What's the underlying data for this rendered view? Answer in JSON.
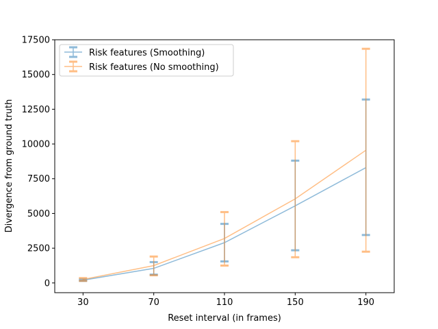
{
  "chart_data": {
    "type": "line",
    "xlabel": "Reset interval (in frames)",
    "ylabel": "Divergence from ground truth",
    "x": [
      30,
      70,
      110,
      150,
      190
    ],
    "xticks": [
      "30",
      "70",
      "110",
      "150",
      "190"
    ],
    "yticks": [
      "0",
      "2500",
      "5000",
      "7500",
      "10000",
      "12500",
      "15000",
      "17500"
    ],
    "ylim": [
      -700,
      17500
    ],
    "xlim": [
      14,
      206
    ],
    "grid": false,
    "legend_position": "upper-left",
    "series": [
      {
        "name": "Risk features (Smoothing)",
        "color": "#1f77b4",
        "values": [
          200,
          1050,
          2900,
          5550,
          8300
        ],
        "err_low": [
          150,
          600,
          1550,
          2350,
          3450
        ],
        "err_high": [
          250,
          1500,
          4250,
          8800,
          13200
        ]
      },
      {
        "name": "Risk features (No smoothing)",
        "color": "#ff7f0e",
        "values": [
          250,
          1250,
          3200,
          6050,
          9550
        ],
        "err_low": [
          150,
          550,
          1250,
          1850,
          2250
        ],
        "err_high": [
          350,
          1900,
          5100,
          10200,
          16850
        ]
      }
    ]
  }
}
